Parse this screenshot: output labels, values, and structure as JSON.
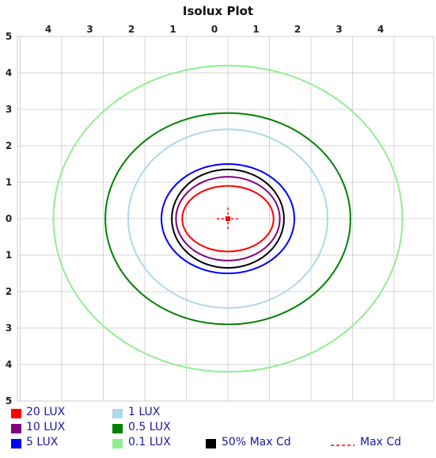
{
  "chart_data": {
    "type": "contour",
    "title": "Isolux Plot",
    "x_tick_labels": [
      "4",
      "3",
      "2",
      "1",
      "0",
      "1",
      "2",
      "3",
      "4"
    ],
    "y_tick_labels": [
      "5",
      "4",
      "3",
      "2",
      "1",
      "0",
      "1",
      "2",
      "3",
      "4",
      "5"
    ],
    "xlim": [
      -5,
      5
    ],
    "ylim": [
      -5,
      5
    ],
    "grid": true,
    "series": [
      {
        "name": "20 LUX",
        "color": "#ff0000",
        "rx": 1.1,
        "ry": 0.9
      },
      {
        "name": "10 LUX",
        "color": "#800080",
        "rx": 1.25,
        "ry": 1.15
      },
      {
        "name": "5 LUX",
        "color": "#0000ff",
        "rx": 1.6,
        "ry": 1.5
      },
      {
        "name": "1 LUX",
        "color": "#add8e6",
        "rx": 2.4,
        "ry": 2.45
      },
      {
        "name": "0.5 LUX",
        "color": "#008000",
        "rx": 2.95,
        "ry": 2.9
      },
      {
        "name": "0.1 LUX",
        "color": "#90ee90",
        "rx": 4.2,
        "ry": 4.2
      }
    ],
    "max_cd_50": {
      "name": "50% Max Cd",
      "color": "#000000",
      "rx": 1.35,
      "ry": 1.35
    },
    "max_cd": {
      "name": "Max Cd",
      "color": "#ff0000",
      "x": 0,
      "y": 0
    }
  }
}
